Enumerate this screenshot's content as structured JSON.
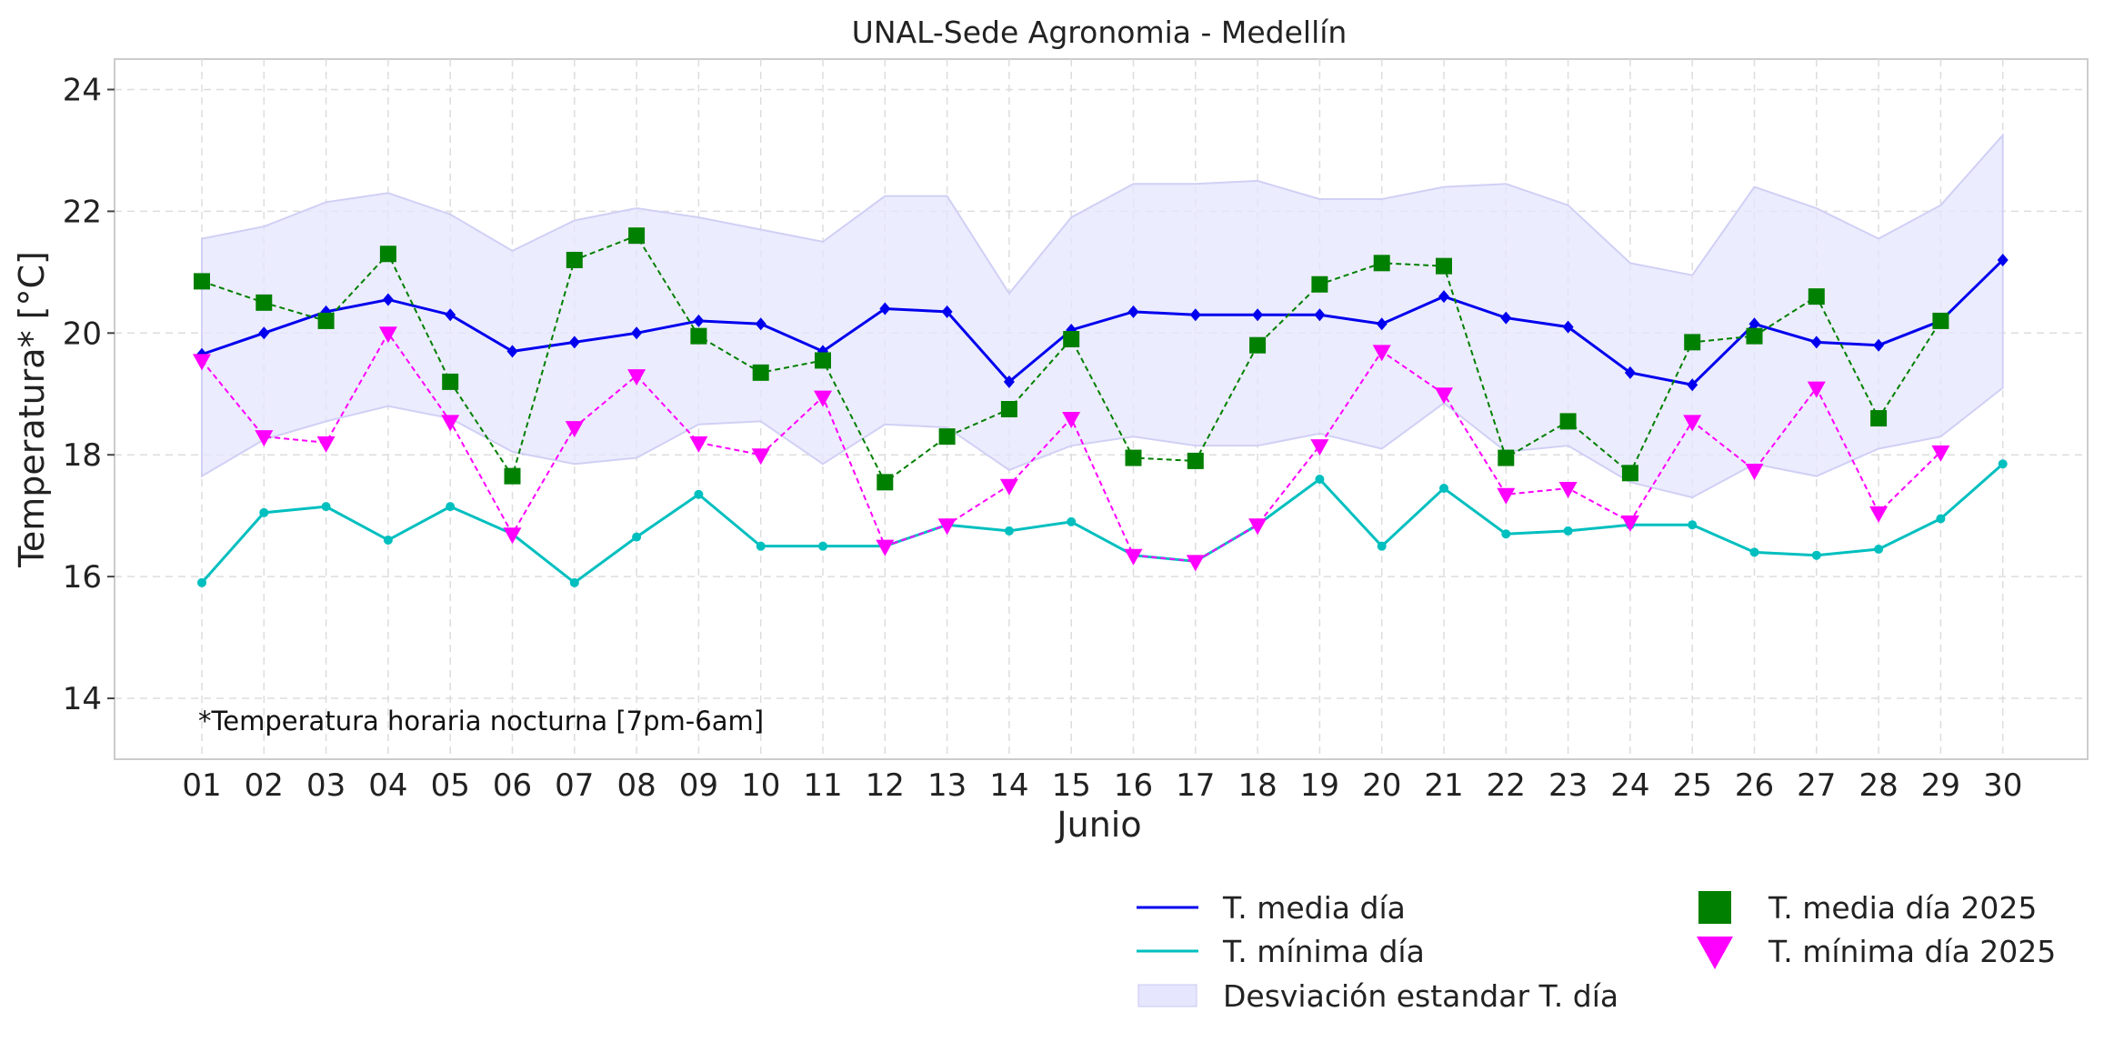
{
  "chart_data": {
    "type": "line",
    "title": "UNAL-Sede Agronomia - Medellín",
    "xlabel": "Junio",
    "ylabel": "Temperatura* [°C]",
    "annotation": "*Temperatura horaria nocturna [7pm-6am]",
    "ylim": [
      13,
      24.5
    ],
    "yticks": [
      14,
      16,
      18,
      20,
      22,
      24
    ],
    "categories": [
      "01",
      "02",
      "03",
      "04",
      "05",
      "06",
      "07",
      "08",
      "09",
      "10",
      "11",
      "12",
      "13",
      "14",
      "15",
      "16",
      "17",
      "18",
      "19",
      "20",
      "21",
      "22",
      "23",
      "24",
      "25",
      "26",
      "27",
      "28",
      "29",
      "30"
    ],
    "grid": true,
    "legend_placement": "bottom-right, outside plot",
    "band": {
      "name": "Desviación estandar T. día",
      "color": "#e6e6ff",
      "upper": [
        21.55,
        21.75,
        22.15,
        22.3,
        21.95,
        21.35,
        21.85,
        22.05,
        21.9,
        21.7,
        21.5,
        22.25,
        22.25,
        20.65,
        21.9,
        22.45,
        22.45,
        22.5,
        22.2,
        22.2,
        22.4,
        22.45,
        22.1,
        21.15,
        20.95,
        22.4,
        22.05,
        21.55,
        22.1,
        23.25
      ],
      "lower": [
        17.65,
        18.25,
        18.55,
        18.8,
        18.6,
        18.05,
        17.85,
        17.95,
        18.5,
        18.55,
        17.85,
        18.5,
        18.45,
        17.75,
        18.15,
        18.3,
        18.15,
        18.15,
        18.35,
        18.1,
        18.85,
        18.05,
        18.15,
        17.55,
        17.3,
        17.85,
        17.65,
        18.1,
        18.3,
        19.1
      ]
    },
    "series": [
      {
        "name": "T. media día",
        "color": "#0000ee",
        "style": "solid",
        "marker": "diamond",
        "values": [
          19.65,
          20.0,
          20.35,
          20.55,
          20.3,
          19.7,
          19.85,
          20.0,
          20.2,
          20.15,
          19.7,
          20.4,
          20.35,
          19.2,
          20.05,
          20.35,
          20.3,
          20.3,
          20.3,
          20.15,
          20.6,
          20.25,
          20.1,
          19.35,
          19.15,
          20.15,
          19.85,
          19.8,
          20.2,
          21.2
        ]
      },
      {
        "name": "T. mínima día",
        "color": "#00bfbf",
        "style": "solid",
        "marker": "circle",
        "values": [
          15.9,
          17.05,
          17.15,
          16.6,
          17.15,
          16.7,
          15.9,
          16.65,
          17.35,
          16.5,
          16.5,
          16.5,
          16.85,
          16.75,
          16.9,
          16.35,
          16.25,
          16.85,
          17.6,
          16.5,
          17.45,
          16.7,
          16.75,
          16.85,
          16.85,
          16.4,
          16.35,
          16.45,
          16.95,
          17.85
        ]
      },
      {
        "name": "T. media día 2025",
        "color": "#008000",
        "style": "dashed",
        "marker": "square",
        "values": [
          20.85,
          20.5,
          20.2,
          21.3,
          19.2,
          17.65,
          21.2,
          21.6,
          19.95,
          19.35,
          19.55,
          17.55,
          18.3,
          18.75,
          19.9,
          17.95,
          17.9,
          19.8,
          20.8,
          21.15,
          21.1,
          17.95,
          18.55,
          17.7,
          19.85,
          19.95,
          20.6,
          18.6,
          20.2,
          null
        ]
      },
      {
        "name": "T. mínima día 2025",
        "color": "#ff00ff",
        "style": "dashed",
        "marker": "triangle-down",
        "values": [
          19.55,
          18.3,
          18.2,
          20.0,
          18.55,
          16.7,
          18.45,
          19.3,
          18.2,
          18.0,
          18.95,
          16.5,
          16.85,
          17.5,
          18.6,
          16.35,
          16.25,
          16.85,
          18.15,
          19.7,
          19.0,
          17.35,
          17.45,
          16.9,
          18.55,
          17.75,
          19.1,
          17.05,
          18.05,
          null
        ]
      }
    ]
  }
}
